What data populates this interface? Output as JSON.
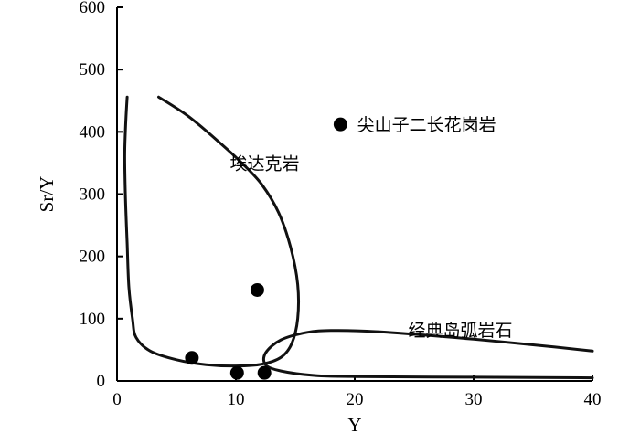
{
  "chart_data": {
    "type": "scatter",
    "xlabel": "Y",
    "ylabel": "Sr/Y",
    "xlim": [
      0,
      40
    ],
    "ylim": [
      0,
      600
    ],
    "x_ticks": [
      0,
      10,
      20,
      30,
      40
    ],
    "y_ticks": [
      0,
      100,
      200,
      300,
      400,
      500,
      600
    ],
    "grid": false,
    "series": [
      {
        "name": "尖山子二长花岗岩",
        "marker": "filled-circle",
        "color": "#000000",
        "points": [
          {
            "x": 6.3,
            "y": 37
          },
          {
            "x": 10.1,
            "y": 13
          },
          {
            "x": 11.8,
            "y": 146
          },
          {
            "x": 12.4,
            "y": 13
          }
        ]
      }
    ],
    "field_lines": [
      {
        "name": "埃达克岩",
        "points": [
          [
            3.5,
            456
          ],
          [
            6,
            425
          ],
          [
            8.5,
            385
          ],
          [
            10.5,
            350
          ],
          [
            12.2,
            315
          ],
          [
            13.6,
            270
          ],
          [
            14.6,
            215
          ],
          [
            15.2,
            155
          ],
          [
            15.2,
            100
          ],
          [
            14.7,
            60
          ],
          [
            13.8,
            38
          ],
          [
            12.2,
            27
          ],
          [
            10,
            24
          ],
          [
            7.5,
            26
          ],
          [
            5,
            34
          ],
          [
            2.8,
            48
          ],
          [
            1.6,
            70
          ],
          [
            1.3,
            100
          ],
          [
            1,
            150
          ],
          [
            0.85,
            220
          ],
          [
            0.7,
            300
          ],
          [
            0.65,
            360
          ],
          [
            0.7,
            400
          ],
          [
            0.85,
            456
          ]
        ]
      },
      {
        "name": "经典岛弧岩石",
        "points": [
          [
            40,
            5
          ],
          [
            30,
            6
          ],
          [
            20,
            7
          ],
          [
            16.5,
            9
          ],
          [
            13.8,
            16
          ],
          [
            12.5,
            26
          ],
          [
            12.5,
            45
          ],
          [
            13.8,
            66
          ],
          [
            16,
            78
          ],
          [
            18,
            81
          ],
          [
            21,
            80
          ],
          [
            25,
            75
          ],
          [
            30,
            67
          ],
          [
            35,
            58
          ],
          [
            40,
            48
          ]
        ]
      }
    ],
    "annotations": [
      {
        "text": "埃达克岩",
        "x": 9.5,
        "y": 350
      },
      {
        "text": "经典岛弧岩石",
        "x": 24.5,
        "y": 82
      },
      {
        "text": "尖山子二长花岗岩",
        "x": 20.2,
        "y": 412
      }
    ],
    "legend": {
      "label": "尖山子二长花岗岩",
      "marker_x": 18.8,
      "marker_y": 412
    }
  }
}
